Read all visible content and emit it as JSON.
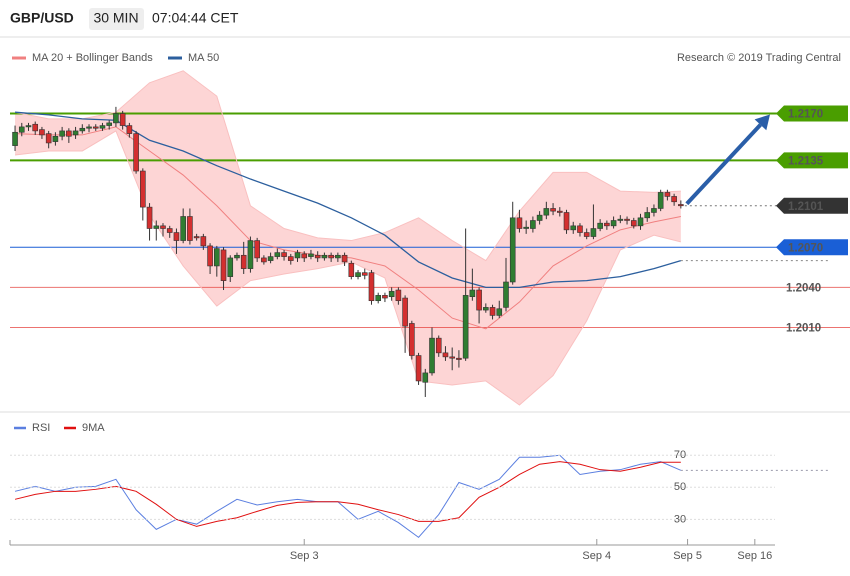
{
  "header": {
    "symbol": "GBP/USD",
    "timeframe": "30 MIN",
    "time": "07:04:44 CET",
    "credit": "Research © 2019 Trading Central"
  },
  "chart_data": [
    {
      "type": "candlestick",
      "up_color": "#2f7d32",
      "down_color": "#d32f2f",
      "xlim": [
        -0.75,
        113
      ],
      "ylim": [
        1.1952,
        1.2225
      ],
      "ohlc": [
        [
          1.2146,
          1.2161,
          1.2142,
          1.2156
        ],
        [
          1.2156,
          1.2163,
          1.2153,
          1.216
        ],
        [
          1.216,
          1.2163,
          1.2157,
          1.2161
        ],
        [
          1.2162,
          1.2164,
          1.2154,
          1.2157
        ],
        [
          1.2158,
          1.216,
          1.2151,
          1.2154
        ],
        [
          1.2155,
          1.2157,
          1.2144,
          1.2148
        ],
        [
          1.2149,
          1.2156,
          1.2146,
          1.2153
        ],
        [
          1.2153,
          1.216,
          1.215,
          1.2157
        ],
        [
          1.2157,
          1.2159,
          1.2148,
          1.2153
        ],
        [
          1.2154,
          1.216,
          1.2151,
          1.2157
        ],
        [
          1.2157,
          1.2162,
          1.2155,
          1.2159
        ],
        [
          1.2159,
          1.2162,
          1.2156,
          1.216
        ],
        [
          1.216,
          1.2162,
          1.2157,
          1.2159
        ],
        [
          1.2159,
          1.2163,
          1.2157,
          1.2161
        ],
        [
          1.2161,
          1.2165,
          1.2158,
          1.2163
        ],
        [
          1.2163,
          1.2175,
          1.216,
          1.217
        ],
        [
          1.217,
          1.2172,
          1.2158,
          1.2161
        ],
        [
          1.2161,
          1.2163,
          1.2152,
          1.2155
        ],
        [
          1.2155,
          1.2157,
          1.2125,
          1.2127
        ],
        [
          1.2127,
          1.2129,
          1.209,
          1.21
        ],
        [
          1.21,
          1.2103,
          1.2075,
          1.2084
        ],
        [
          1.2084,
          1.209,
          1.2075,
          1.2086
        ],
        [
          1.2086,
          1.2088,
          1.2078,
          1.2084
        ],
        [
          1.2084,
          1.2086,
          1.2077,
          1.2081
        ],
        [
          1.2081,
          1.2084,
          1.2065,
          1.2075
        ],
        [
          1.2075,
          1.2099,
          1.2073,
          1.2093
        ],
        [
          1.2093,
          1.2099,
          1.2072,
          1.2075
        ],
        [
          1.2078,
          1.208,
          1.2075,
          1.2077
        ],
        [
          1.2078,
          1.208,
          1.2068,
          1.2071
        ],
        [
          1.2071,
          1.2073,
          1.205,
          1.2056
        ],
        [
          1.2056,
          1.2071,
          1.2048,
          1.2069
        ],
        [
          1.2068,
          1.207,
          1.2038,
          1.2045
        ],
        [
          1.2048,
          1.2064,
          1.2044,
          1.2062
        ],
        [
          1.2062,
          1.2066,
          1.206,
          1.2064
        ],
        [
          1.2064,
          1.2074,
          1.205,
          1.2054
        ],
        [
          1.2054,
          1.2078,
          1.2051,
          1.2075
        ],
        [
          1.2075,
          1.2077,
          1.2059,
          1.2062
        ],
        [
          1.2062,
          1.2064,
          1.2057,
          1.2059
        ],
        [
          1.206,
          1.2066,
          1.2058,
          1.2063
        ],
        [
          1.2063,
          1.2069,
          1.2061,
          1.2066
        ],
        [
          1.2066,
          1.2068,
          1.206,
          1.2063
        ],
        [
          1.2063,
          1.2065,
          1.2057,
          1.206
        ],
        [
          1.2062,
          1.2068,
          1.2059,
          1.2066
        ],
        [
          1.2065,
          1.2067,
          1.2059,
          1.2062
        ],
        [
          1.2063,
          1.2068,
          1.2061,
          1.2065
        ],
        [
          1.2064,
          1.2067,
          1.2059,
          1.2062
        ],
        [
          1.2062,
          1.2066,
          1.206,
          1.2064
        ],
        [
          1.2064,
          1.2066,
          1.2059,
          1.2062
        ],
        [
          1.2062,
          1.2066,
          1.2059,
          1.2064
        ],
        [
          1.2064,
          1.2066,
          1.2056,
          1.2059
        ],
        [
          1.2058,
          1.206,
          1.2046,
          1.2048
        ],
        [
          1.2048,
          1.2053,
          1.2046,
          1.2051
        ],
        [
          1.2051,
          1.2054,
          1.2046,
          1.2049
        ],
        [
          1.2051,
          1.2053,
          1.2027,
          1.203
        ],
        [
          1.203,
          1.2036,
          1.2028,
          1.2034
        ],
        [
          1.2034,
          1.2036,
          1.2029,
          1.2032
        ],
        [
          1.2033,
          1.204,
          1.203,
          1.2037
        ],
        [
          1.2038,
          1.204,
          1.2027,
          1.203
        ],
        [
          1.2032,
          1.2034,
          1.1991,
          1.2011
        ],
        [
          1.2013,
          1.2015,
          1.1986,
          1.1989
        ],
        [
          1.1989,
          1.1991,
          1.1967,
          1.197
        ],
        [
          1.1969,
          1.1979,
          1.1958,
          1.1976
        ],
        [
          1.1976,
          1.201,
          1.1974,
          1.2002
        ],
        [
          1.2002,
          1.2004,
          1.1988,
          1.1991
        ],
        [
          1.1991,
          1.1996,
          1.1985,
          1.1988
        ],
        [
          1.1988,
          1.1995,
          1.1978,
          1.1987
        ],
        [
          1.1987,
          1.1993,
          1.198,
          1.1986
        ],
        [
          1.1987,
          1.2084,
          1.1985,
          1.2034
        ],
        [
          1.2033,
          1.2054,
          1.203,
          1.2038
        ],
        [
          1.2038,
          1.204,
          1.2013,
          1.2023
        ],
        [
          1.2023,
          1.2028,
          1.2021,
          1.2025
        ],
        [
          1.2025,
          1.2027,
          1.2016,
          1.2019
        ],
        [
          1.2019,
          1.203,
          1.2017,
          1.2024
        ],
        [
          1.2025,
          1.2062,
          1.2022,
          1.2044
        ],
        [
          1.2044,
          1.2104,
          1.2042,
          1.2092
        ],
        [
          1.2092,
          1.2098,
          1.2081,
          1.2084
        ],
        [
          1.2084,
          1.209,
          1.208,
          1.2085
        ],
        [
          1.2084,
          1.2093,
          1.2081,
          1.209
        ],
        [
          1.209,
          1.2097,
          1.2087,
          1.2094
        ],
        [
          1.2094,
          1.2104,
          1.2091,
          1.2099
        ],
        [
          1.2099,
          1.2103,
          1.2094,
          1.2097
        ],
        [
          1.2097,
          1.21,
          1.2093,
          1.2096
        ],
        [
          1.2096,
          1.2098,
          1.208,
          1.2083
        ],
        [
          1.2083,
          1.2089,
          1.208,
          1.2086
        ],
        [
          1.2086,
          1.2088,
          1.2078,
          1.2081
        ],
        [
          1.2081,
          1.2084,
          1.2076,
          1.2078
        ],
        [
          1.2078,
          1.2102,
          1.2076,
          1.2084
        ],
        [
          1.2084,
          1.2091,
          1.2082,
          1.2088
        ],
        [
          1.2088,
          1.209,
          1.2083,
          1.2086
        ],
        [
          1.2086,
          1.2093,
          1.2084,
          1.209
        ],
        [
          1.209,
          1.2094,
          1.2088,
          1.2091
        ],
        [
          1.2091,
          1.2093,
          1.2087,
          1.209
        ],
        [
          1.209,
          1.2092,
          1.2084,
          1.2086
        ],
        [
          1.2086,
          1.2095,
          1.2083,
          1.2092
        ],
        [
          1.2092,
          1.21,
          1.2089,
          1.2096
        ],
        [
          1.2096,
          1.2102,
          1.2093,
          1.2099
        ],
        [
          1.2099,
          1.2113,
          1.2097,
          1.2111
        ],
        [
          1.2111,
          1.2113,
          1.2105,
          1.2108
        ],
        [
          1.2108,
          1.211,
          1.2101,
          1.2104
        ],
        [
          1.2102,
          1.2105,
          1.2099,
          1.2101
        ]
      ],
      "series": [
        {
          "name": "MA 20 + Bollinger Bands",
          "color": "#f08080",
          "band_color": "#fdd5d5",
          "x": [
            0,
            5,
            10,
            15,
            20,
            25,
            30,
            35,
            40,
            45,
            50,
            55,
            60,
            65,
            70,
            75,
            80,
            85,
            90,
            95,
            99
          ],
          "values": [
            1.2155,
            1.2154,
            1.2154,
            1.216,
            1.2142,
            1.2124,
            1.2101,
            1.2075,
            1.2068,
            1.2064,
            1.2062,
            1.2056,
            1.2038,
            1.2017,
            1.2009,
            1.2029,
            1.2056,
            1.2071,
            1.2083,
            1.2089,
            1.2093
          ],
          "upper": [
            1.2171,
            1.2166,
            1.2166,
            1.2171,
            1.2193,
            1.2202,
            1.2183,
            1.2101,
            1.2084,
            1.2077,
            1.2075,
            1.2081,
            1.2092,
            1.2075,
            1.206,
            1.2097,
            1.2126,
            1.2126,
            1.2112,
            1.2111,
            1.2112
          ],
          "lower": [
            1.2139,
            1.2142,
            1.2142,
            1.2157,
            1.2094,
            1.2056,
            1.2026,
            1.2045,
            1.205,
            1.2054,
            1.2059,
            1.2047,
            1.197,
            1.1967,
            1.197,
            1.1952,
            1.1974,
            1.2015,
            1.2068,
            1.2079,
            1.2074
          ]
        },
        {
          "name": "MA 50",
          "color": "#2c5f9e",
          "x": [
            0,
            5,
            10,
            15,
            20,
            25,
            30,
            35,
            40,
            45,
            50,
            55,
            60,
            65,
            70,
            75,
            80,
            85,
            90,
            95,
            99
          ],
          "values": [
            1.2171,
            1.2169,
            1.2166,
            1.2165,
            1.215,
            1.2142,
            1.2131,
            1.2121,
            1.2112,
            1.2103,
            1.2092,
            1.2079,
            1.2059,
            1.2047,
            1.204,
            1.204,
            1.2044,
            1.2045,
            1.2048,
            1.2054,
            1.206
          ]
        }
      ],
      "levels": [
        {
          "value": 1.217,
          "label": "1.2170",
          "color": "#4a9e00",
          "label_style": "box",
          "line_style": "solid"
        },
        {
          "value": 1.2135,
          "label": "1.2135",
          "color": "#4a9e00",
          "label_style": "box",
          "line_style": "solid"
        },
        {
          "value": 1.2101,
          "label": "1.2101",
          "color": "#333333",
          "label_style": "box",
          "line_style": "dotted"
        },
        {
          "value": 1.207,
          "label": "1.2070",
          "color": "#1a5fd6",
          "label_style": "box",
          "line_style": "solid"
        },
        {
          "value": 1.204,
          "label": "1.2040",
          "color": "#e53935",
          "label_style": "plain",
          "line_style": "solid"
        },
        {
          "value": 1.201,
          "label": "1.2010",
          "color": "#e53935",
          "label_style": "plain",
          "line_style": "solid"
        }
      ]
    },
    {
      "type": "line",
      "xlim": [
        -0.75,
        113
      ],
      "ylim": [
        14,
        92
      ],
      "yticks": [
        30,
        50,
        70
      ],
      "grid": true,
      "xticks": [
        {
          "value": 43,
          "label": "Sep 3"
        },
        {
          "value": 86.5,
          "label": "Sep 4"
        },
        {
          "value": 100,
          "label": "Sep 5"
        },
        {
          "value": 110,
          "label": "Sep 16"
        }
      ],
      "series": [
        {
          "name": "RSI",
          "color": "#5b7fe0",
          "x": [
            0,
            3,
            6,
            9,
            12,
            15,
            18,
            21,
            24,
            27,
            30,
            33,
            36,
            39,
            42,
            45,
            48,
            51,
            54,
            57,
            60,
            63,
            66,
            69,
            72,
            75,
            78,
            81,
            84,
            87,
            90,
            93,
            96,
            99
          ],
          "values": [
            47.5,
            50.6,
            47.5,
            50,
            50.6,
            55,
            36,
            23.75,
            30,
            27,
            35,
            42.5,
            39,
            41,
            42.5,
            41,
            41,
            30,
            35,
            28,
            18.75,
            33,
            53,
            48.75,
            55,
            68.75,
            68.75,
            70,
            58,
            60,
            61,
            64.4,
            66,
            60.6
          ]
        },
        {
          "name": "9MA",
          "color": "#e01010",
          "x": [
            0,
            3,
            6,
            9,
            12,
            15,
            18,
            21,
            24,
            27,
            30,
            33,
            36,
            39,
            42,
            45,
            48,
            51,
            54,
            57,
            60,
            63,
            66,
            69,
            72,
            75,
            78,
            81,
            84,
            87,
            90,
            93,
            96,
            99
          ],
          "values": [
            42.5,
            45.6,
            47.5,
            47.5,
            48.75,
            50.6,
            47.5,
            39.4,
            30,
            25.6,
            28.75,
            31,
            35,
            38.75,
            40.6,
            41,
            41,
            39.4,
            36,
            33,
            28.75,
            28.75,
            31,
            43.75,
            50,
            58,
            64.4,
            66,
            64.4,
            61,
            60,
            62.5,
            65.6,
            65.6
          ]
        }
      ]
    }
  ]
}
